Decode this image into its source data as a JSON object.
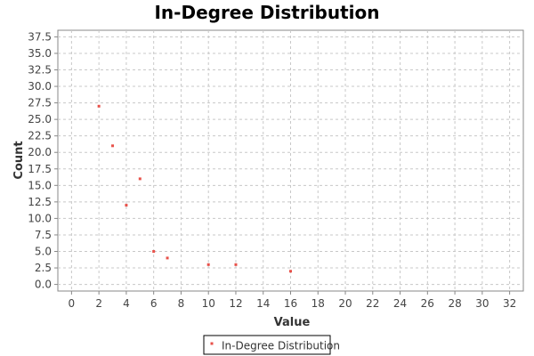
{
  "chart_data": {
    "type": "scatter",
    "title": "In-Degree Distribution",
    "xlabel": "Value",
    "ylabel": "Count",
    "xlim": [
      -1,
      33
    ],
    "ylim": [
      -1,
      38.5
    ],
    "x_ticks": [
      0,
      2,
      4,
      6,
      8,
      10,
      12,
      14,
      16,
      18,
      20,
      22,
      24,
      26,
      28,
      30,
      32
    ],
    "y_ticks": [
      0,
      2.5,
      5,
      7.5,
      10,
      12.5,
      15,
      17.5,
      20,
      22.5,
      25,
      27.5,
      30,
      32.5,
      35,
      37.5
    ],
    "grid": true,
    "legend_position": "bottom",
    "series": [
      {
        "name": "In-Degree Distribution",
        "color": "#e8514a",
        "points": [
          {
            "x": 2,
            "y": 27
          },
          {
            "x": 3,
            "y": 21
          },
          {
            "x": 4,
            "y": 12
          },
          {
            "x": 5,
            "y": 16
          },
          {
            "x": 6,
            "y": 5
          },
          {
            "x": 7,
            "y": 4
          },
          {
            "x": 10,
            "y": 3
          },
          {
            "x": 12,
            "y": 3
          },
          {
            "x": 16,
            "y": 2
          }
        ]
      }
    ]
  }
}
